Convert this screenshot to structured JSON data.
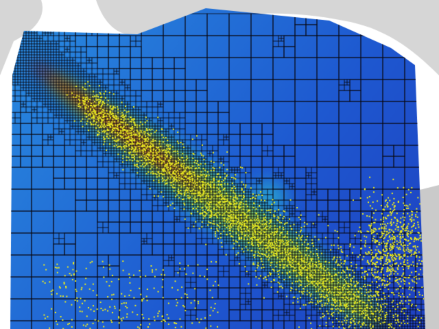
{
  "scene": {
    "colors": {
      "background": "#ffffff",
      "surface_grey": "#c8c8c8",
      "field_low": "#1f3fbf",
      "field_mid_low": "#2a8fe0",
      "field_mid": "#3fbf6a",
      "field_mid_high": "#c8c020",
      "field_high": "#b81a10",
      "mesh_lines": "#0a0a14",
      "particles": "#e8e820"
    },
    "icons": [
      "adaptive-mesh",
      "particles",
      "colormap-field"
    ]
  }
}
